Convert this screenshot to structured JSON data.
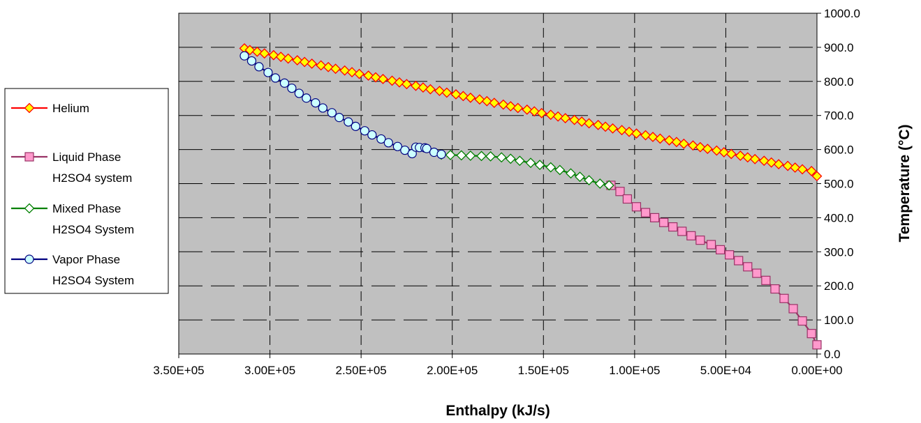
{
  "chart_data": {
    "type": "scatter",
    "title": "",
    "xlabel": "Enthalpy (kJ/s)",
    "ylabel": "Temperature (°C)",
    "xlim": [
      350000,
      0
    ],
    "x_reversed": true,
    "ylim": [
      0,
      1000
    ],
    "x_ticks": [
      "3.50E+05",
      "3.00E+05",
      "2.50E+05",
      "2.00E+05",
      "1.50E+05",
      "1.00E+05",
      "5.00E+04",
      "0.00E+00"
    ],
    "x_tick_values": [
      350000,
      300000,
      250000,
      200000,
      150000,
      100000,
      50000,
      0
    ],
    "y_ticks": [
      "0.0",
      "100.0",
      "200.0",
      "300.0",
      "400.0",
      "500.0",
      "600.0",
      "700.0",
      "800.0",
      "900.0",
      "1000.0"
    ],
    "y_tick_values": [
      0,
      100,
      200,
      300,
      400,
      500,
      600,
      700,
      800,
      900,
      1000
    ],
    "y_axis_side": "right",
    "grid": true,
    "plot_background": "#c0c0c0",
    "legend_position": "left",
    "series": [
      {
        "name": "Helium",
        "legend_lines": [
          "Helium"
        ],
        "line_color": "#ff0000",
        "marker": "diamond",
        "marker_fill": "#ffff00",
        "marker_stroke": "#ff0000",
        "x": [
          314000,
          311000,
          307000,
          303000,
          298000,
          294000,
          290000,
          285000,
          281000,
          277000,
          272000,
          268000,
          264000,
          259000,
          255000,
          251000,
          246000,
          242000,
          238000,
          233000,
          229000,
          225000,
          220000,
          216000,
          212000,
          207000,
          203000,
          198000,
          194000,
          190000,
          185000,
          181000,
          177000,
          172000,
          168000,
          164000,
          159000,
          155000,
          151000,
          146000,
          142000,
          138000,
          133000,
          129000,
          125000,
          120000,
          116000,
          112000,
          107000,
          103000,
          99000,
          94000,
          90000,
          86000,
          81000,
          77000,
          73000,
          68000,
          64000,
          60000,
          55000,
          51000,
          47000,
          42000,
          38000,
          34000,
          29000,
          25000,
          21000,
          16000,
          12000,
          8000,
          3000,
          0
        ],
        "y": [
          897,
          892,
          887,
          882,
          877,
          872,
          867,
          862,
          857,
          852,
          847,
          842,
          837,
          832,
          827,
          822,
          817,
          812,
          807,
          802,
          797,
          792,
          787,
          782,
          777,
          772,
          767,
          762,
          757,
          752,
          747,
          742,
          737,
          732,
          727,
          722,
          717,
          712,
          707,
          702,
          697,
          692,
          687,
          682,
          677,
          672,
          667,
          662,
          657,
          652,
          647,
          642,
          637,
          632,
          627,
          622,
          617,
          612,
          607,
          602,
          597,
          592,
          587,
          582,
          577,
          572,
          567,
          562,
          557,
          552,
          547,
          542,
          537,
          522
        ]
      },
      {
        "name": "Liquid Phase H2SO4 system",
        "legend_lines": [
          "Liquid Phase",
          "H2SO4 system"
        ],
        "line_color": "#993366",
        "marker": "square",
        "marker_fill": "#ff99cc",
        "marker_stroke": "#993366",
        "x": [
          113000,
          108000,
          104000,
          99000,
          94000,
          89000,
          84000,
          79000,
          74000,
          69000,
          64000,
          58000,
          53000,
          48000,
          43000,
          38000,
          33000,
          28000,
          23000,
          18000,
          13000,
          8000,
          3000,
          0
        ],
        "y": [
          495,
          477,
          455,
          432,
          415,
          400,
          386,
          373,
          360,
          347,
          334,
          321,
          306,
          291,
          274,
          256,
          237,
          216,
          191,
          163,
          133,
          97,
          60,
          27
        ]
      },
      {
        "name": "Mixed Phase H2SO4 System",
        "legend_lines": [
          "Mixed Phase",
          "H2SO4 System"
        ],
        "line_color": "#008000",
        "marker": "diamond",
        "marker_fill": "#ffffff",
        "marker_stroke": "#008000",
        "x": [
          206000,
          201000,
          195000,
          190000,
          184000,
          179000,
          173000,
          168000,
          163000,
          157000,
          152000,
          146000,
          141000,
          135000,
          130000,
          125000,
          119000,
          114000
        ],
        "y": [
          585,
          584,
          583,
          582,
          581,
          580,
          577,
          573,
          567,
          561,
          555,
          548,
          540,
          530,
          520,
          510,
          500,
          495
        ]
      },
      {
        "name": "Vapor Phase H2SO4 System",
        "legend_lines": [
          "Vapor Phase",
          "H2SO4 System"
        ],
        "line_color": "#000080",
        "marker": "circle",
        "marker_fill": "#ccffff",
        "marker_stroke": "#000080",
        "x": [
          314000,
          310000,
          306000,
          301000,
          297000,
          292000,
          288000,
          284000,
          280000,
          275000,
          271000,
          266000,
          262000,
          257000,
          253000,
          248000,
          244000,
          239000,
          235000,
          230000,
          226000,
          222000,
          220000,
          218000,
          215000,
          214000,
          210000,
          206000
        ],
        "y": [
          875,
          860,
          843,
          826,
          810,
          795,
          780,
          765,
          751,
          737,
          722,
          708,
          694,
          681,
          668,
          655,
          643,
          631,
          620,
          609,
          598,
          588,
          607,
          606,
          605,
          603,
          592,
          586
        ]
      }
    ]
  }
}
